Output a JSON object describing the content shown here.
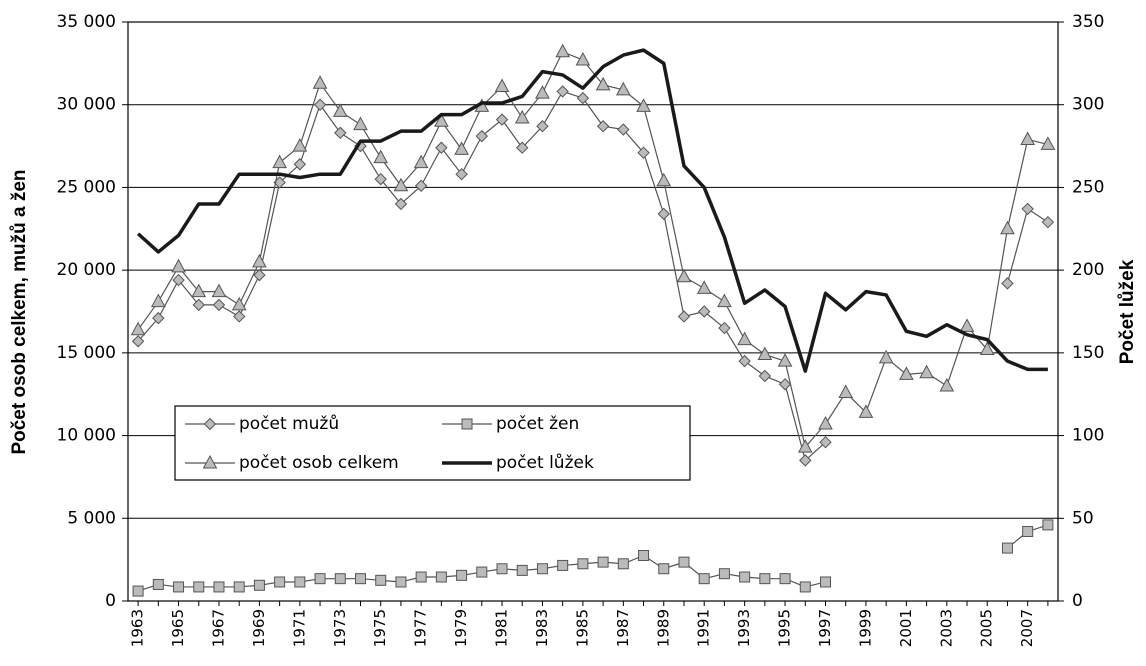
{
  "chart_data": {
    "type": "line",
    "y_label": "Počet osob celkem, mužů  a žen",
    "y2_label": "Počet lůžek",
    "categories": [
      "1963",
      null,
      "1965",
      null,
      "1967",
      null,
      "1969",
      null,
      "1971",
      null,
      "1973",
      null,
      "1975",
      null,
      "1977",
      null,
      "1979",
      null,
      "1981",
      null,
      "1983",
      null,
      "1985",
      null,
      "1987",
      null,
      "1989",
      null,
      "1991",
      null,
      "1993",
      null,
      "1995",
      null,
      "1997",
      null,
      "1999",
      null,
      "2001",
      null,
      "2003",
      null,
      "2005",
      null,
      "2007",
      null
    ],
    "ylim": [
      0,
      35000
    ],
    "yticks": [
      0,
      {
        "value": 5000,
        "label": "5 000"
      },
      {
        "value": 10000,
        "label": "10 000"
      },
      {
        "value": 15000,
        "label": "15 000"
      },
      {
        "value": 20000,
        "label": "20 000"
      },
      {
        "value": 25000,
        "label": "25 000"
      },
      {
        "value": 30000,
        "label": "30 000"
      },
      {
        "value": 35000,
        "label": "35 000"
      }
    ],
    "y2lim": [
      0,
      350
    ],
    "y2ticks": [
      0,
      50,
      100,
      150,
      200,
      250,
      300,
      350
    ],
    "grid": true,
    "series": [
      {
        "name": "počet mužů",
        "marker": "diamond",
        "color": "#555555",
        "values": [
          15700,
          17100,
          19400,
          17900,
          17900,
          17200,
          19700,
          25300,
          26400,
          30000,
          28300,
          27500,
          25500,
          24000,
          25100,
          27400,
          25800,
          28100,
          29100,
          27400,
          28700,
          30800,
          30400,
          28700,
          28500,
          27100,
          23400,
          17200,
          17500,
          16500,
          14500,
          13600,
          13100,
          8500,
          9600,
          null,
          null,
          null,
          null,
          null,
          null,
          null,
          null,
          19200,
          23700,
          22900
        ]
      },
      {
        "name": "počet žen",
        "marker": "square",
        "color": "#555555",
        "values": [
          600,
          1000,
          850,
          850,
          850,
          850,
          950,
          1150,
          1150,
          1350,
          1350,
          1350,
          1250,
          1150,
          1450,
          1450,
          1550,
          1750,
          1950,
          1850,
          1950,
          2150,
          2250,
          2350,
          2250,
          2750,
          1950,
          2350,
          1350,
          1650,
          1450,
          1350,
          1350,
          850,
          1150,
          null,
          null,
          null,
          null,
          null,
          null,
          null,
          null,
          3200,
          4200,
          4600
        ]
      },
      {
        "name": "počet osob celkem",
        "marker": "triangle",
        "color": "#555555",
        "values": [
          16400,
          18100,
          20200,
          18700,
          18700,
          17900,
          20500,
          26500,
          27500,
          31300,
          29600,
          28800,
          26800,
          25100,
          26500,
          29000,
          27300,
          29900,
          31100,
          29200,
          30700,
          33200,
          32700,
          31200,
          30900,
          29900,
          25400,
          19600,
          18900,
          18100,
          15800,
          14900,
          14500,
          9300,
          10700,
          12600,
          11400,
          14700,
          13700,
          13800,
          13000,
          16600,
          15200,
          22500,
          27900,
          27600
        ]
      },
      {
        "name": "počet lůžek",
        "marker": "none",
        "color": "#1a1a1a",
        "axis": "y2",
        "values": [
          222,
          211,
          221,
          240,
          240,
          258,
          258,
          258,
          256,
          258,
          258,
          278,
          278,
          284,
          284,
          294,
          294,
          301,
          301,
          305,
          320,
          318,
          310,
          323,
          330,
          333,
          325,
          263,
          250,
          220,
          180,
          188,
          178,
          139,
          186,
          176,
          187,
          185,
          163,
          160,
          167,
          161,
          158,
          145,
          140,
          140
        ]
      }
    ]
  }
}
